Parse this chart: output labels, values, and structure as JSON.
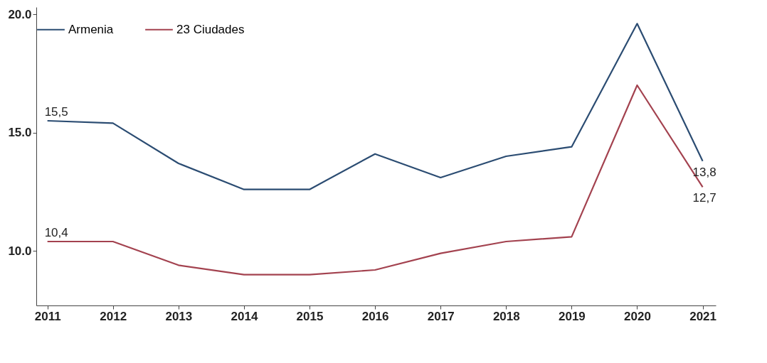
{
  "chart_data": {
    "type": "line",
    "x": [
      2011,
      2012,
      2013,
      2014,
      2015,
      2016,
      2017,
      2018,
      2019,
      2020,
      2021
    ],
    "series": [
      {
        "name": "Armenia",
        "color": "#2b4c72",
        "values": [
          15.5,
          15.4,
          13.7,
          12.6,
          12.6,
          14.1,
          13.1,
          14.0,
          14.4,
          19.6,
          13.8
        ],
        "value_labels": [
          "15,5",
          null,
          null,
          null,
          null,
          null,
          null,
          null,
          null,
          null,
          "13,8"
        ]
      },
      {
        "name": "23 Ciudades",
        "color": "#a3424f",
        "values": [
          10.4,
          10.4,
          9.4,
          9.0,
          9.0,
          9.2,
          9.9,
          10.4,
          10.6,
          17.0,
          12.7
        ],
        "value_labels": [
          "10,4",
          null,
          null,
          null,
          null,
          null,
          null,
          null,
          null,
          null,
          "12,7"
        ]
      }
    ],
    "xlim": [
      2010.83,
      2021.2
    ],
    "xticks": [
      2011,
      2012,
      2013,
      2014,
      2015,
      2016,
      2017,
      2018,
      2019,
      2020,
      2021
    ],
    "ylim": [
      7.7,
      20.3
    ],
    "yticks": [
      {
        "value": 10,
        "label": "10.0"
      },
      {
        "value": 15,
        "label": "15.0"
      },
      {
        "value": 20,
        "label": "20.0"
      }
    ],
    "legend": "top",
    "grid": false
  }
}
